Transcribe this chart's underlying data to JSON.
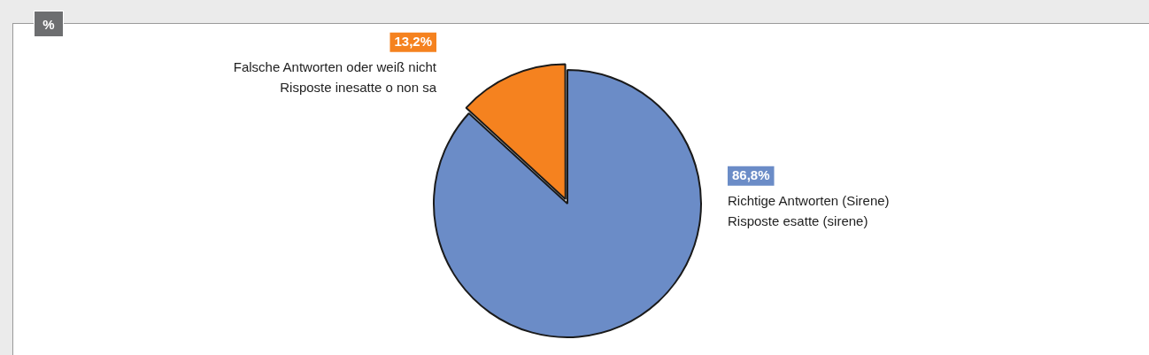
{
  "chart_data": {
    "type": "pie",
    "title": "%",
    "categories": [
      "Richtige Antworten (Sirene)\nRisposte esatte (sirene)",
      "Falsche Antworten oder weiß nicht\nRisposte inesatte o non sa"
    ],
    "values": [
      86.8,
      13.2
    ],
    "colors": [
      "#6b8cc7",
      "#f5821f"
    ],
    "value_labels": [
      "86,8%",
      "13,2%"
    ],
    "legend": "top"
  }
}
